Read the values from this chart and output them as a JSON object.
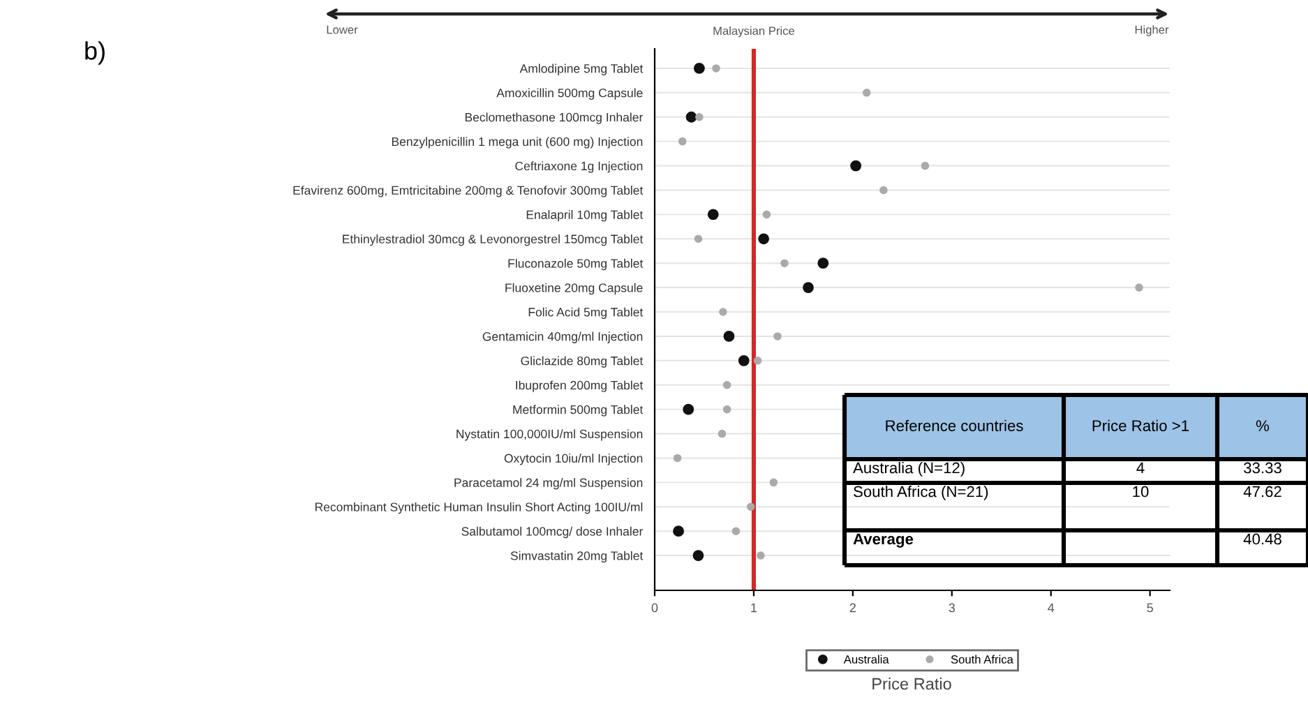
{
  "chart_data": [
    {
      "type": "scatter",
      "categories": [
        "Amlodipine 5mg Tablet",
        "Amoxicillin 500mg Capsule",
        "Beclomethasone 100mcg Inhaler",
        "Benzylpenicillin 1 mega unit (600 mg) Injection",
        "Ceftriaxone 1g Injection",
        "Efavirenz 600mg, Emtricitabine 200mg & Tenofovir 300mg Tablet",
        "Enalapril 10mg Tablet",
        "Ethinylestradiol 30mcg & Levonorgestrel 150mcg Tablet",
        "Fluconazole 50mg Tablet",
        "Fluoxetine 20mg Capsule",
        "Folic Acid 5mg Tablet",
        "Gentamicin 40mg/ml Injection",
        "Gliclazide 80mg Tablet",
        "Ibuprofen 200mg Tablet",
        "Metformin 500mg Tablet",
        "Nystatin 100,000IU/ml Suspension",
        "Oxytocin 10iu/ml Injection",
        "Paracetamol 24 mg/ml Suspension",
        "Recombinant Synthetic Human Insulin Short Acting 100IU/ml",
        "Salbutamol 100mcg/ dose Inhaler",
        "Simvastatin 20mg Tablet"
      ],
      "orientation": "horizontal",
      "series": [
        {
          "name": "Australia",
          "color": "#111111",
          "values": [
            0.45,
            null,
            0.37,
            null,
            2.03,
            null,
            0.59,
            1.1,
            1.7,
            1.55,
            null,
            0.75,
            0.9,
            null,
            0.34,
            null,
            null,
            null,
            null,
            0.24,
            0.44
          ]
        },
        {
          "name": "South Africa",
          "color": "#aaaaaa",
          "values": [
            0.62,
            2.14,
            0.45,
            0.28,
            2.73,
            2.31,
            1.13,
            0.44,
            1.31,
            4.89,
            0.69,
            1.24,
            1.04,
            0.73,
            0.73,
            0.68,
            0.23,
            1.2,
            0.97,
            0.82,
            1.07
          ]
        }
      ],
      "xlim": [
        0,
        5.2
      ],
      "xticks": [
        0,
        1,
        2,
        3,
        4,
        5
      ],
      "xlabel": "Price Ratio",
      "ref_lines": [
        {
          "axis": "x",
          "value": 1,
          "label": "Malaysian Price",
          "color": "#d62728"
        }
      ],
      "annotations": [
        "b)",
        "Lower",
        "Higher"
      ],
      "grid": "y",
      "legend": "bottom",
      "marker": "circle"
    },
    {
      "type": "other",
      "annotations": [
        "Reference countries",
        "Price Ratio >1",
        "%",
        "Australia (N=12)",
        "4",
        "33.33",
        "South Africa (N=21)",
        "10",
        "47.62",
        "Average",
        "40.48"
      ]
    }
  ]
}
